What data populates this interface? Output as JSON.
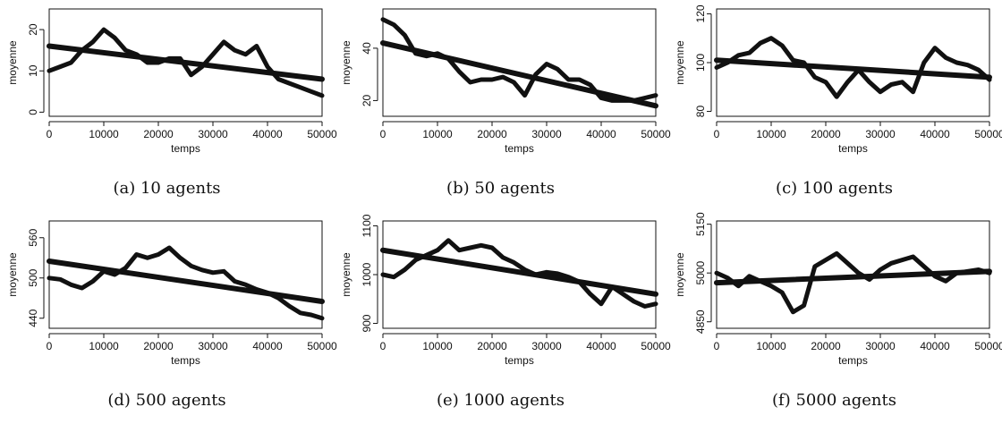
{
  "chart_data": [
    {
      "type": "scatter",
      "caption": "(a) 10 agents",
      "xlabel": "temps",
      "ylabel": "moyenne",
      "xlim": [
        0,
        50000
      ],
      "ylim": [
        -1,
        25
      ],
      "xticks": [
        0,
        10000,
        20000,
        30000,
        40000,
        50000
      ],
      "yticks": [
        0,
        10,
        20
      ],
      "series": [
        {
          "x": [
            0,
            2000,
            4000,
            6000,
            8000,
            10000,
            12000,
            14000,
            16000,
            18000,
            20000,
            22000,
            24000,
            26000,
            28000,
            30000,
            32000,
            34000,
            36000,
            38000,
            40000,
            42000,
            44000,
            46000,
            48000,
            50000
          ],
          "y": [
            10,
            11,
            12,
            15,
            17,
            20,
            18,
            15,
            14,
            12,
            12,
            13,
            13,
            9,
            11,
            14,
            17,
            15,
            14,
            16,
            11,
            8,
            7,
            6,
            5,
            4
          ]
        }
      ],
      "trend": {
        "x": [
          0,
          50000
        ],
        "y": [
          16,
          8
        ]
      }
    },
    {
      "type": "scatter",
      "caption": "(b) 50 agents",
      "xlabel": "temps",
      "ylabel": "moyenne",
      "xlim": [
        0,
        50000
      ],
      "ylim": [
        14,
        55
      ],
      "xticks": [
        0,
        10000,
        20000,
        30000,
        40000,
        50000
      ],
      "yticks": [
        20,
        40
      ],
      "series": [
        {
          "x": [
            0,
            2000,
            4000,
            6000,
            8000,
            10000,
            12000,
            14000,
            16000,
            18000,
            20000,
            22000,
            24000,
            26000,
            28000,
            30000,
            32000,
            34000,
            36000,
            38000,
            40000,
            42000,
            44000,
            46000,
            48000,
            50000
          ],
          "y": [
            51,
            49,
            45,
            38,
            37,
            38,
            36,
            31,
            27,
            28,
            28,
            29,
            27,
            22,
            30,
            34,
            32,
            28,
            28,
            26,
            21,
            20,
            20,
            20,
            21,
            22
          ]
        }
      ],
      "trend": {
        "x": [
          0,
          50000
        ],
        "y": [
          42,
          18
        ]
      }
    },
    {
      "type": "scatter",
      "caption": "(c) 100 agents",
      "xlabel": "temps",
      "ylabel": "moyenne",
      "xlim": [
        0,
        50000
      ],
      "ylim": [
        78,
        122
      ],
      "xticks": [
        0,
        10000,
        20000,
        30000,
        40000,
        50000
      ],
      "yticks": [
        80,
        100,
        120
      ],
      "series": [
        {
          "x": [
            0,
            2000,
            4000,
            6000,
            8000,
            10000,
            12000,
            14000,
            16000,
            18000,
            20000,
            22000,
            24000,
            26000,
            28000,
            30000,
            32000,
            34000,
            36000,
            38000,
            40000,
            42000,
            44000,
            46000,
            48000,
            50000
          ],
          "y": [
            98,
            100,
            103,
            104,
            108,
            110,
            107,
            101,
            100,
            94,
            92,
            86,
            92,
            97,
            92,
            88,
            91,
            92,
            88,
            100,
            106,
            102,
            100,
            99,
            97,
            93
          ]
        }
      ],
      "trend": {
        "x": [
          0,
          50000
        ],
        "y": [
          101,
          94
        ]
      }
    },
    {
      "type": "scatter",
      "caption": "(d) 500 agents",
      "xlabel": "temps",
      "ylabel": "moyenne",
      "xlim": [
        0,
        50000
      ],
      "ylim": [
        425,
        585
      ],
      "xticks": [
        0,
        10000,
        20000,
        30000,
        40000,
        50000
      ],
      "yticks": [
        440,
        500,
        560
      ],
      "series": [
        {
          "x": [
            0,
            2000,
            4000,
            6000,
            8000,
            10000,
            12000,
            14000,
            16000,
            18000,
            20000,
            22000,
            24000,
            26000,
            28000,
            30000,
            32000,
            34000,
            36000,
            38000,
            40000,
            42000,
            44000,
            46000,
            48000,
            50000
          ],
          "y": [
            500,
            498,
            490,
            485,
            495,
            510,
            505,
            515,
            535,
            530,
            535,
            545,
            530,
            518,
            512,
            508,
            510,
            495,
            490,
            483,
            478,
            470,
            458,
            448,
            445,
            440
          ]
        }
      ],
      "trend": {
        "x": [
          0,
          50000
        ],
        "y": [
          525,
          465
        ]
      }
    },
    {
      "type": "scatter",
      "caption": "(e) 1000 agents",
      "xlabel": "temps",
      "ylabel": "moyenne",
      "xlim": [
        0,
        50000
      ],
      "ylim": [
        890,
        1110
      ],
      "xticks": [
        0,
        10000,
        20000,
        30000,
        40000,
        50000
      ],
      "yticks": [
        900,
        1000,
        1100
      ],
      "series": [
        {
          "x": [
            0,
            2000,
            4000,
            6000,
            8000,
            10000,
            12000,
            14000,
            16000,
            18000,
            20000,
            22000,
            24000,
            26000,
            28000,
            30000,
            32000,
            34000,
            36000,
            38000,
            40000,
            42000,
            44000,
            46000,
            48000,
            50000
          ],
          "y": [
            1000,
            995,
            1010,
            1030,
            1040,
            1050,
            1070,
            1050,
            1055,
            1060,
            1055,
            1035,
            1025,
            1010,
            1000,
            1005,
            1002,
            995,
            985,
            960,
            940,
            975,
            960,
            945,
            935,
            940
          ]
        }
      ],
      "trend": {
        "x": [
          0,
          50000
        ],
        "y": [
          1050,
          960
        ]
      }
    },
    {
      "type": "scatter",
      "caption": "(f) 5000 agents",
      "xlabel": "temps",
      "ylabel": "moyenne",
      "xlim": [
        0,
        50000
      ],
      "ylim": [
        4830,
        5160
      ],
      "xticks": [
        0,
        10000,
        20000,
        30000,
        40000,
        50000
      ],
      "yticks": [
        4850,
        5000,
        5150
      ],
      "series": [
        {
          "x": [
            0,
            2000,
            4000,
            6000,
            8000,
            10000,
            12000,
            14000,
            16000,
            18000,
            20000,
            22000,
            24000,
            26000,
            28000,
            30000,
            32000,
            34000,
            36000,
            38000,
            40000,
            42000,
            44000,
            46000,
            48000,
            50000
          ],
          "y": [
            5000,
            4985,
            4960,
            4990,
            4975,
            4960,
            4940,
            4880,
            4900,
            5020,
            5040,
            5060,
            5030,
            5000,
            4980,
            5010,
            5030,
            5040,
            5050,
            5020,
            4990,
            4975,
            5000,
            5005,
            5010,
            5000
          ]
        }
      ],
      "trend": {
        "x": [
          0,
          50000
        ],
        "y": [
          4970,
          5005
        ]
      }
    }
  ]
}
